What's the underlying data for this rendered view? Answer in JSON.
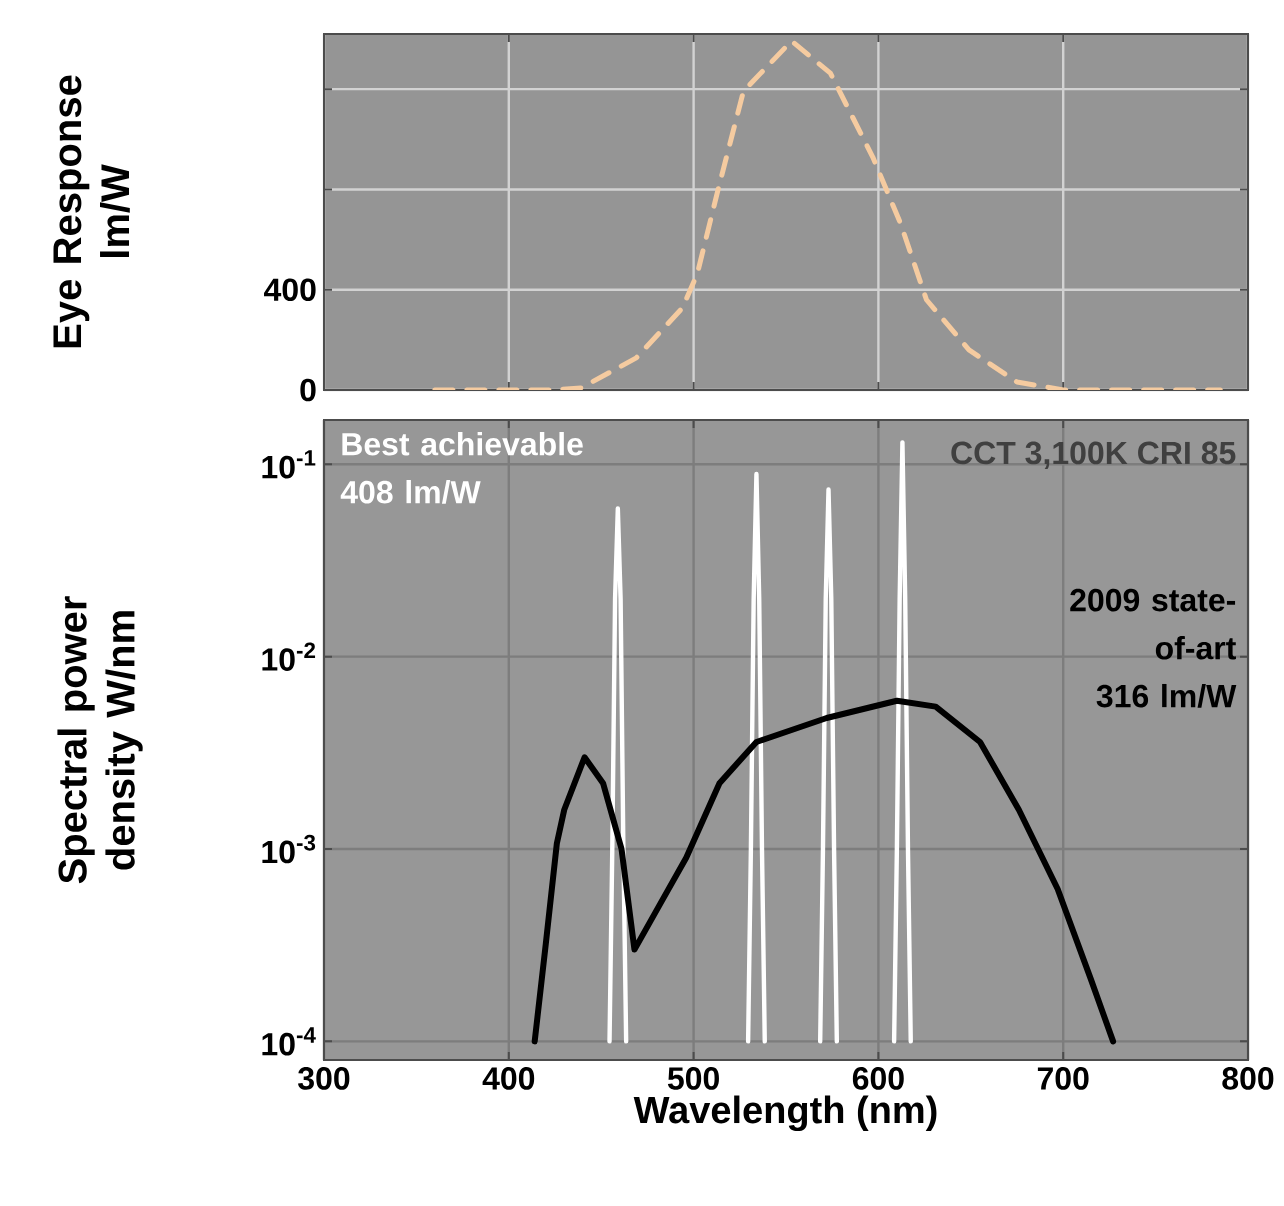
{
  "chart_data": [
    {
      "type": "line",
      "ylabel": "Eye Response lm/W",
      "xlim": [
        300,
        800
      ],
      "xticks": [
        {
          "value": 300,
          "label": null
        },
        {
          "value": 400,
          "label": null
        },
        {
          "value": 500,
          "label": null
        },
        {
          "value": 600,
          "label": null
        },
        {
          "value": 700,
          "label": null
        },
        {
          "value": 800,
          "label": null
        }
      ],
      "ylim": [
        0,
        1420
      ],
      "yticks": [
        0,
        400,
        {
          "value": 800,
          "label": null
        },
        {
          "value": 1200,
          "label": null
        }
      ],
      "tick_labels": "y",
      "grid": true,
      "line_style": "dashed",
      "series": [
        {
          "color": "#f5cba0",
          "x": [
            360,
            422,
            439,
            469,
            494,
            502,
            513,
            527,
            553,
            574,
            597,
            612,
            626,
            649,
            675,
            700,
            785
          ],
          "values": [
            0,
            0,
            8,
            128,
            328,
            464,
            792,
            1192,
            1392,
            1264,
            928,
            664,
            360,
            160,
            32,
            0,
            0
          ]
        }
      ]
    },
    {
      "type": "line",
      "xlabel": "Wavelength (nm)",
      "ylabel": "Spectral power density W/nm",
      "log": "y",
      "xlim": [
        300,
        800
      ],
      "xticks": [
        300,
        400,
        500,
        600,
        700,
        800
      ],
      "ylim": [
        8e-05,
        0.17
      ],
      "yticks": [
        {
          "value": 0.1,
          "label": "10$^{-1}$"
        },
        {
          "value": 0.01,
          "label": "10$^{-2}$"
        },
        {
          "value": 0.001,
          "label": "10$^{-3}$"
        },
        {
          "value": 0.0001,
          "label": "10$^{-4}$"
        }
      ],
      "grid": true,
      "annotations": [
        "CCT 3,100K CRI 85"
      ],
      "series": [
        {
          "name": "Best achievable 408 lm/W",
          "color": "#ffffff",
          "x": [
            454.5,
            456,
            457.5,
            459,
            460.5,
            462,
            463.5,
            496,
            529.5,
            531,
            532.5,
            534,
            535.5,
            537,
            538.5,
            553,
            568.5,
            570,
            571.5,
            573,
            574.5,
            576,
            577.5,
            593,
            608.5,
            610,
            611.5,
            613,
            614.5,
            616,
            617.5
          ],
          "values": [
            0.0001,
            0.001,
            0.02,
            0.059,
            0.02,
            0.001,
            0.0001,
            null,
            0.0001,
            0.001,
            0.02,
            0.089,
            0.02,
            0.001,
            0.0001,
            null,
            0.0001,
            0.001,
            0.02,
            0.074,
            0.02,
            0.001,
            0.0001,
            null,
            0.0001,
            0.001,
            0.02,
            0.13,
            0.02,
            0.001,
            0.0001
          ]
        },
        {
          "name": "2009 state-of-art 316 lm/W",
          "color": "#000000",
          "x": [
            414,
            420,
            426,
            430,
            441,
            451,
            461,
            468,
            482,
            496,
            514,
            534,
            572,
            610,
            631,
            655,
            676,
            697,
            715,
            727
          ],
          "values": [
            0.0001,
            0.00032,
            0.00107,
            0.0016,
            0.003,
            0.0022,
            0.001,
            0.0003,
            0.00052,
            0.0009,
            0.0022,
            0.0036,
            0.0048,
            0.0059,
            0.0055,
            0.0036,
            0.0016,
            0.00062,
            0.00021,
            0.0001
          ]
        }
      ]
    }
  ]
}
